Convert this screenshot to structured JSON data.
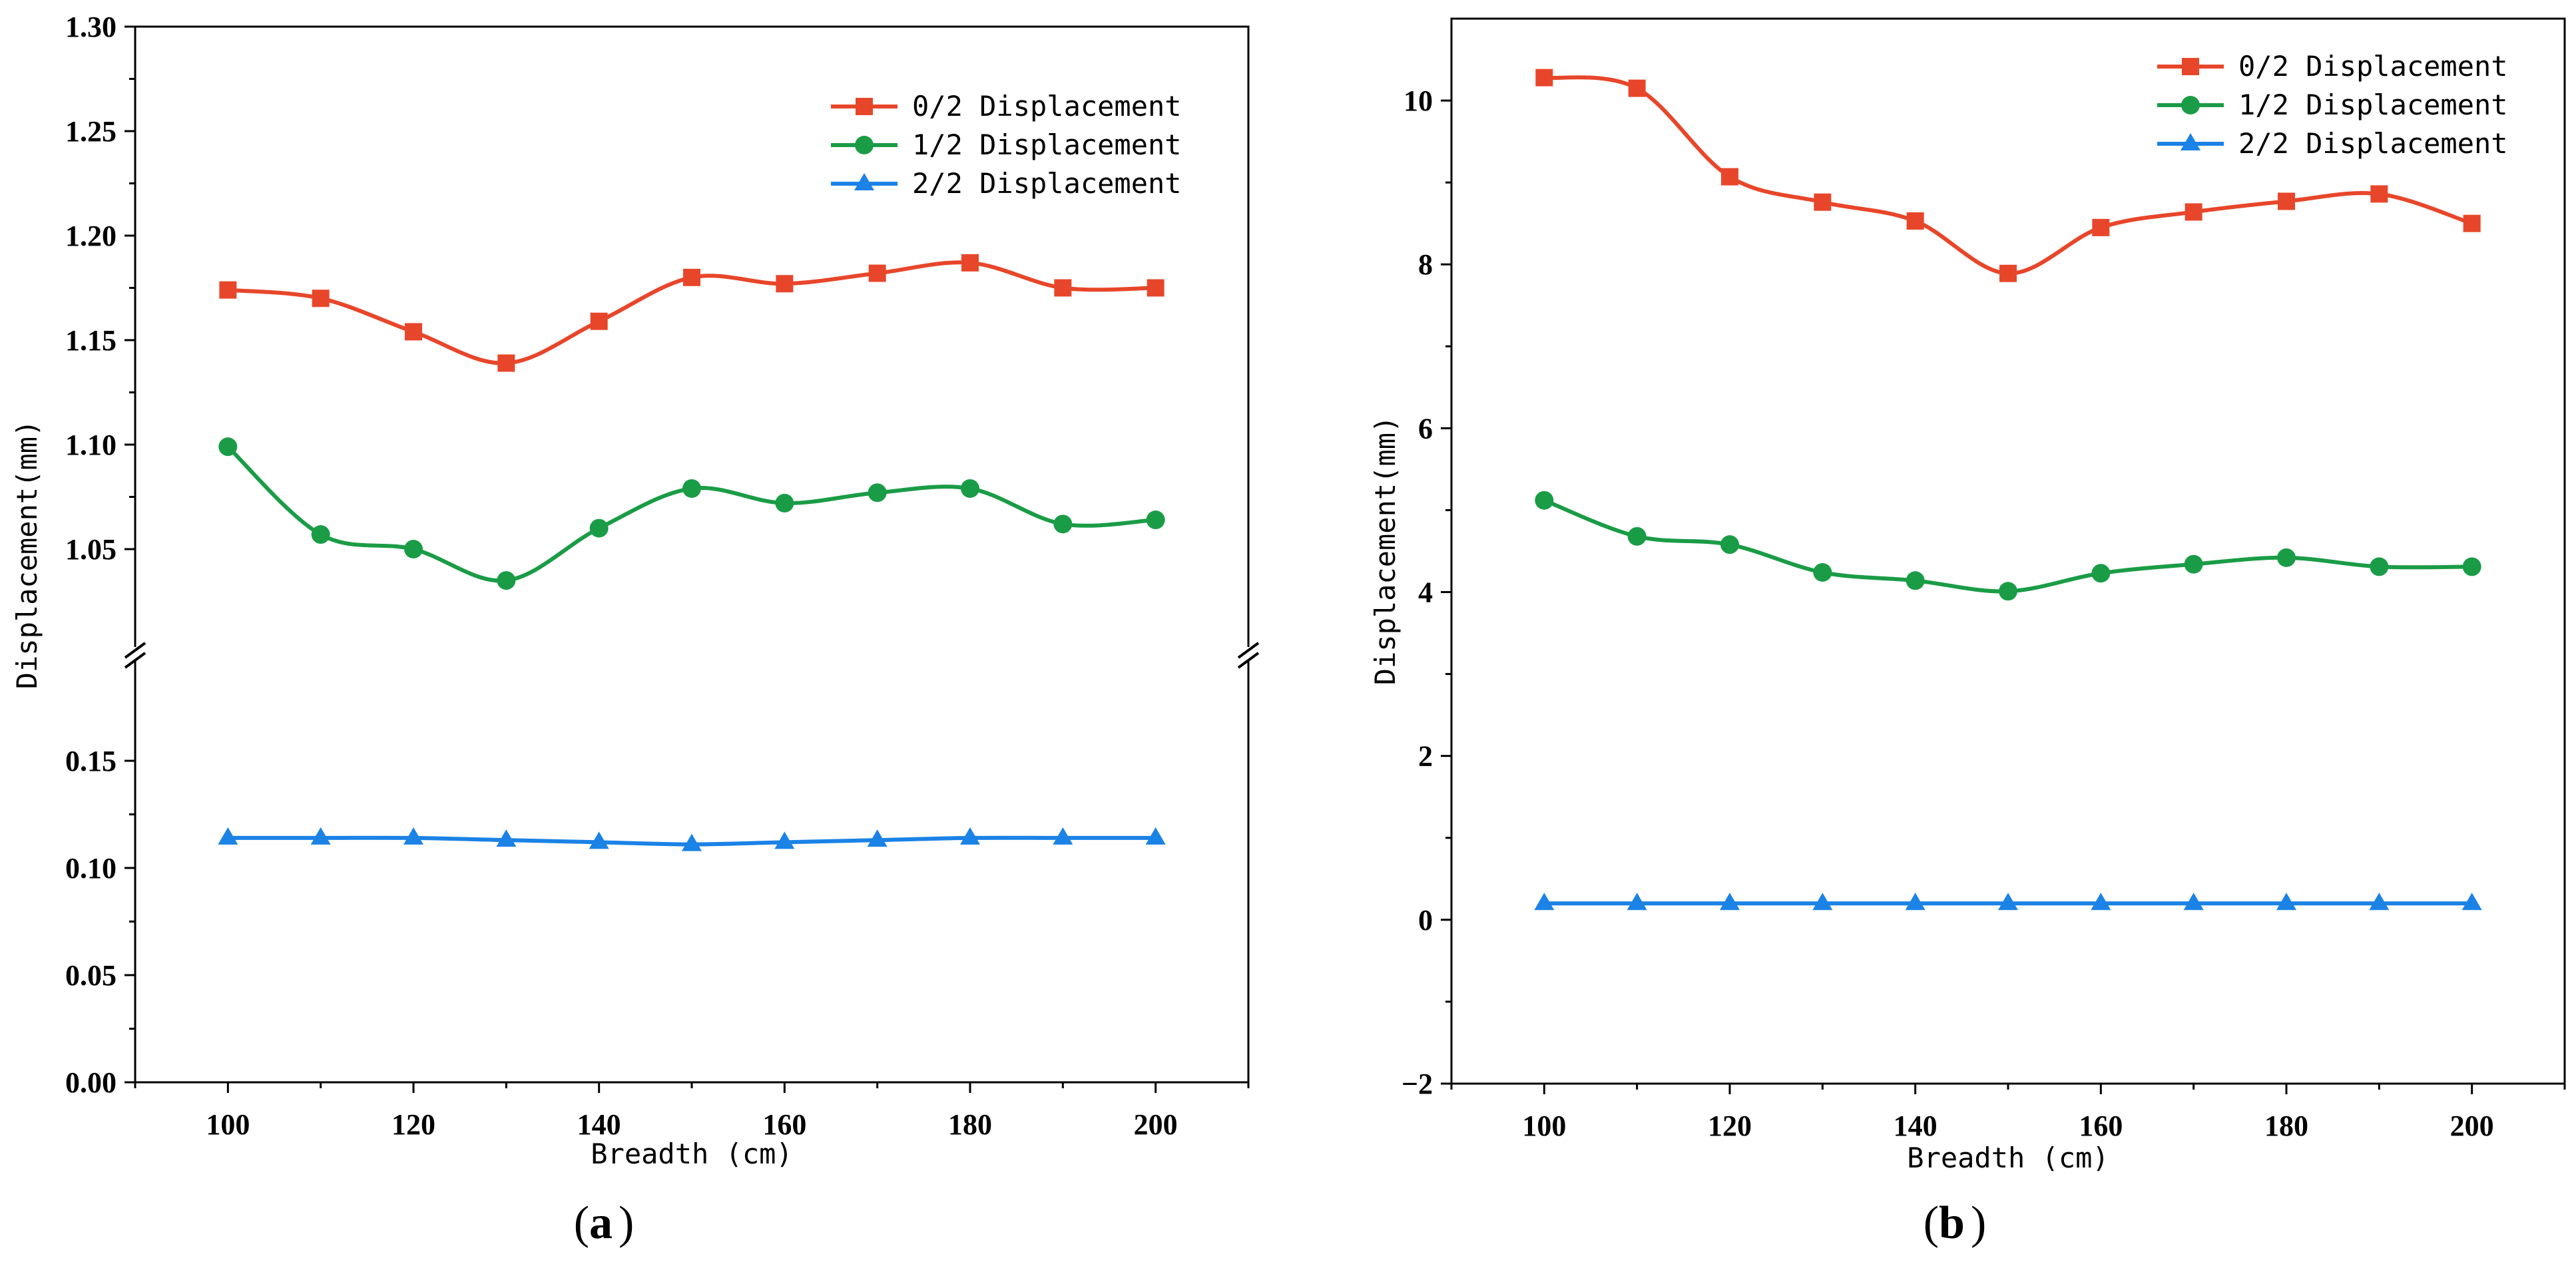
{
  "chart_data": [
    {
      "type": "line",
      "panel_label": "a",
      "xlabel": "Breadth (cm)",
      "ylabel": "Displacement(mm)",
      "x": [
        100,
        110,
        120,
        130,
        140,
        150,
        160,
        170,
        180,
        190,
        200
      ],
      "xlim": [
        90,
        210
      ],
      "xticks": [
        100,
        120,
        140,
        160,
        180,
        200
      ],
      "y_axis_break": true,
      "y_segments": [
        {
          "ylim": [
            0.0,
            0.2
          ],
          "yticks": [
            0.0,
            0.05,
            0.1,
            0.15
          ],
          "tick_labels": [
            "0.00",
            "0.05",
            "0.10",
            "0.15"
          ]
        },
        {
          "ylim": [
            1.0,
            1.3
          ],
          "yticks": [
            1.05,
            1.1,
            1.15,
            1.2,
            1.25,
            1.3
          ],
          "tick_labels": [
            "1.05",
            "1.10",
            "1.15",
            "1.20",
            "1.25",
            "1.30"
          ]
        }
      ],
      "legend_position": "top-right",
      "series": [
        {
          "name": "0/2 Displacement",
          "color": "#e8462a",
          "marker": "square",
          "values": [
            1.174,
            1.17,
            1.154,
            1.139,
            1.159,
            1.18,
            1.177,
            1.182,
            1.187,
            1.175,
            1.175
          ]
        },
        {
          "name": "1/2 Displacement",
          "color": "#1a9c46",
          "marker": "circle",
          "values": [
            1.099,
            1.057,
            1.05,
            1.035,
            1.06,
            1.079,
            1.072,
            1.077,
            1.079,
            1.062,
            1.064
          ]
        },
        {
          "name": "2/2 Displacement",
          "color": "#1b82e6",
          "marker": "triangle",
          "values": [
            0.114,
            0.114,
            0.114,
            0.113,
            0.112,
            0.111,
            0.112,
            0.113,
            0.114,
            0.114,
            0.114
          ]
        }
      ]
    },
    {
      "type": "line",
      "panel_label": "b",
      "xlabel": "Breadth (cm)",
      "ylabel": "Displacement(mm)",
      "x": [
        100,
        110,
        120,
        130,
        140,
        150,
        160,
        170,
        180,
        190,
        200
      ],
      "xlim": [
        90,
        210
      ],
      "xticks": [
        100,
        120,
        140,
        160,
        180,
        200
      ],
      "ylim": [
        -2,
        11
      ],
      "yticks": [
        -2,
        0,
        2,
        4,
        6,
        8,
        10
      ],
      "ytick_labels": [
        "−2",
        "0",
        "2",
        "4",
        "6",
        "8",
        "10"
      ],
      "legend_position": "top-right",
      "series": [
        {
          "name": "0/2 Displacement",
          "color": "#e8462a",
          "marker": "square",
          "values": [
            10.28,
            10.15,
            9.07,
            8.76,
            8.53,
            7.89,
            8.45,
            8.64,
            8.77,
            8.86,
            8.5
          ]
        },
        {
          "name": "1/2 Displacement",
          "color": "#1a9c46",
          "marker": "circle",
          "values": [
            5.12,
            4.68,
            4.58,
            4.24,
            4.14,
            4.01,
            4.23,
            4.34,
            4.42,
            4.31,
            4.31
          ]
        },
        {
          "name": "2/2 Displacement",
          "color": "#1b82e6",
          "marker": "triangle",
          "values": [
            0.2,
            0.2,
            0.2,
            0.2,
            0.2,
            0.2,
            0.2,
            0.2,
            0.2,
            0.2,
            0.2
          ]
        }
      ]
    }
  ]
}
